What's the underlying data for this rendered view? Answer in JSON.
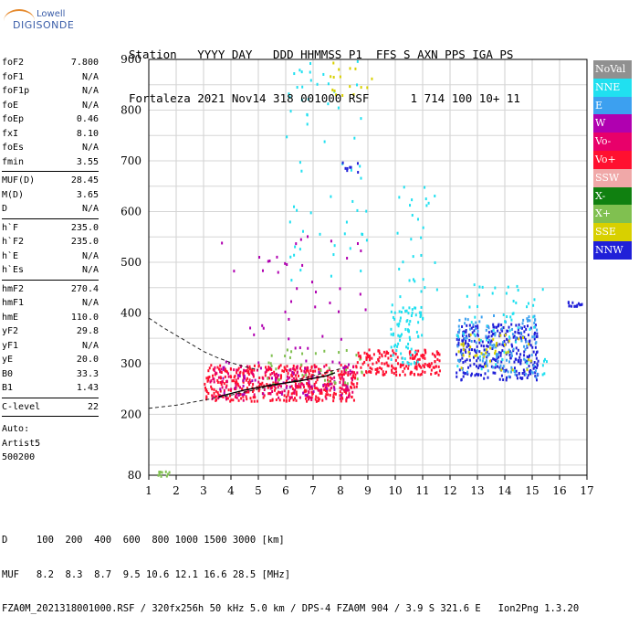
{
  "logo": {
    "line1": "Lowell",
    "line2": "DIGISONDE"
  },
  "header": {
    "line1": "Station   YYYY DAY   DDD HHMMSS P1  FFS S AXN PPS IGA PS",
    "line2": "Fortaleza 2021 Nov14 318 001000 RSF      1 714 100 10+ 11"
  },
  "params": {
    "group1": [
      {
        "name": "foF2",
        "value": "7.800"
      },
      {
        "name": "foF1",
        "value": "N/A"
      },
      {
        "name": "foF1p",
        "value": "N/A"
      },
      {
        "name": "foE",
        "value": "N/A"
      },
      {
        "name": "foEp",
        "value": "0.46"
      },
      {
        "name": "fxI",
        "value": "8.10"
      },
      {
        "name": "foEs",
        "value": "N/A"
      },
      {
        "name": "fmin",
        "value": "3.55"
      }
    ],
    "group2": [
      {
        "name": "MUF(D)",
        "value": "28.45"
      },
      {
        "name": "M(D)",
        "value": "3.65"
      },
      {
        "name": "D",
        "value": "N/A"
      }
    ],
    "group3": [
      {
        "name": "h`F",
        "value": "235.0"
      },
      {
        "name": "h`F2",
        "value": "235.0"
      },
      {
        "name": "h`E",
        "value": "N/A"
      },
      {
        "name": "h`Es",
        "value": "N/A"
      }
    ],
    "group4": [
      {
        "name": "hmF2",
        "value": "270.4"
      },
      {
        "name": "hmF1",
        "value": "N/A"
      },
      {
        "name": "hmE",
        "value": "110.0"
      },
      {
        "name": "yF2",
        "value": "29.8"
      },
      {
        "name": "yF1",
        "value": "N/A"
      },
      {
        "name": "yE",
        "value": "20.0"
      },
      {
        "name": "B0",
        "value": "33.3"
      },
      {
        "name": "B1",
        "value": "1.43"
      }
    ],
    "group5": [
      {
        "name": "C-level",
        "value": "22"
      }
    ],
    "auto": [
      "Auto:",
      "Artist5",
      "500200"
    ]
  },
  "legend": [
    {
      "label": "NoVal",
      "color": "#909090"
    },
    {
      "label": "NNE",
      "color": "#20e0f0"
    },
    {
      "label": "E",
      "color": "#3ca0f0"
    },
    {
      "label": "W",
      "color": "#b000b0"
    },
    {
      "label": "Vo-",
      "color": "#e8006a"
    },
    {
      "label": "Vo+",
      "color": "#ff1030"
    },
    {
      "label": "SSW",
      "color": "#f0a8a8"
    },
    {
      "label": "X-",
      "color": "#108010"
    },
    {
      "label": "X+",
      "color": "#80c050"
    },
    {
      "label": "SSE",
      "color": "#d8d000"
    },
    {
      "label": "NNW",
      "color": "#2020d8"
    }
  ],
  "footer": {
    "line1": "D     100  200  400  600  800 1000 1500 3000 [km]",
    "line2": "MUF   8.2  8.3  8.7  9.5 10.6 12.1 16.6 28.5 [MHz]",
    "line3": "FZA0M_2021318001000.RSF / 320fx256h 50 kHz 5.0 km / DPS-4 FZA0M 904 / 3.9 S 321.6 E   Ion2Png 1.3.20"
  },
  "chart_data": {
    "type": "scatter",
    "xlim": [
      1,
      17
    ],
    "ylim": [
      80,
      900
    ],
    "x_ticks": [
      "1",
      "2",
      "3",
      "4",
      "5",
      "6",
      "7",
      "8",
      "9",
      "10",
      "11",
      "12",
      "13",
      "14",
      "15",
      "16",
      "17"
    ],
    "y_ticks": [
      "80",
      "200",
      "300",
      "400",
      "500",
      "600",
      "700",
      "800",
      "900"
    ],
    "grid": true,
    "legend_position": "right",
    "trace_solid": [
      [
        3.55,
        235
      ],
      [
        4.5,
        248
      ],
      [
        5.5,
        258
      ],
      [
        6.5,
        266
      ],
      [
        7.5,
        276
      ],
      [
        7.8,
        282
      ]
    ],
    "trace_dashed_low": [
      [
        1,
        212
      ],
      [
        2,
        218
      ],
      [
        3,
        228
      ],
      [
        4,
        238
      ],
      [
        5,
        250
      ],
      [
        6,
        262
      ],
      [
        7,
        276
      ],
      [
        8,
        290
      ]
    ],
    "trace_dashed_high": [
      [
        1,
        390
      ],
      [
        1.5,
        372
      ],
      [
        2,
        356
      ],
      [
        2.5,
        340
      ],
      [
        3,
        324
      ],
      [
        3.5,
        312
      ],
      [
        4,
        302
      ],
      [
        4.5,
        294
      ],
      [
        5,
        288
      ]
    ],
    "echo_clusters": [
      {
        "x": [
          3.0,
          8.6
        ],
        "y": [
          228,
          300
        ],
        "code": "Vo+",
        "n": 420
      },
      {
        "x": [
          3.2,
          8.6
        ],
        "y": [
          230,
          300
        ],
        "code": "Vo-",
        "n": 160
      },
      {
        "x": [
          3.5,
          8.6
        ],
        "y": [
          240,
          310
        ],
        "code": "W",
        "n": 60
      },
      {
        "x": [
          5.0,
          8.8
        ],
        "y": [
          260,
          330
        ],
        "code": "X+",
        "n": 40
      },
      {
        "x": [
          8.5,
          11.6
        ],
        "y": [
          280,
          330
        ],
        "code": "Vo+",
        "n": 180
      },
      {
        "x": [
          9.8,
          11.0
        ],
        "y": [
          300,
          420
        ],
        "code": "NNE",
        "n": 80
      },
      {
        "x": [
          12.2,
          15.2
        ],
        "y": [
          270,
          380
        ],
        "code": "NNW",
        "n": 300
      },
      {
        "x": [
          12.2,
          15.2
        ],
        "y": [
          275,
          400
        ],
        "code": "E",
        "n": 120
      },
      {
        "x": [
          12.2,
          15.5
        ],
        "y": [
          280,
          460
        ],
        "code": "NNE",
        "n": 60
      },
      {
        "x": [
          12.2,
          15.0
        ],
        "y": [
          290,
          360
        ],
        "code": "SSE",
        "n": 40
      },
      {
        "x": [
          16.2,
          16.8
        ],
        "y": [
          415,
          425
        ],
        "code": "NNW",
        "n": 14
      },
      {
        "x": [
          3.5,
          9.0
        ],
        "y": [
          330,
          560
        ],
        "code": "W",
        "n": 40
      },
      {
        "x": [
          6.0,
          9.0
        ],
        "y": [
          460,
          900
        ],
        "code": "NNE",
        "n": 60
      },
      {
        "x": [
          7.5,
          9.2
        ],
        "y": [
          820,
          900
        ],
        "code": "SSE",
        "n": 16
      },
      {
        "x": [
          8.0,
          9.0
        ],
        "y": [
          680,
          700
        ],
        "code": "NNW",
        "n": 8
      },
      {
        "x": [
          10.0,
          11.5
        ],
        "y": [
          400,
          660
        ],
        "code": "NNE",
        "n": 30
      },
      {
        "x": [
          1.2,
          1.8
        ],
        "y": [
          80,
          90
        ],
        "code": "X+",
        "n": 10
      }
    ]
  }
}
